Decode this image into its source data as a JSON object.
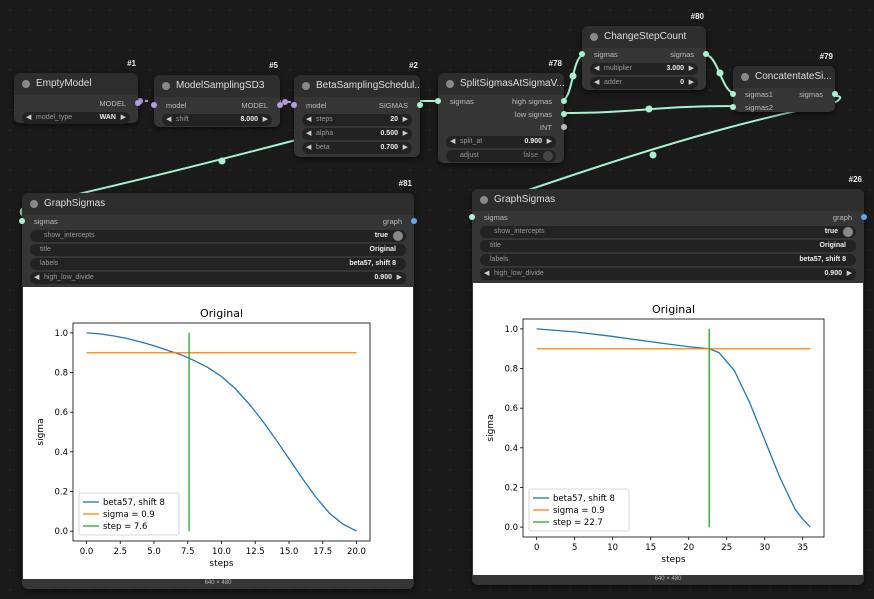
{
  "nodes": {
    "empty_model": {
      "id": "#1",
      "title": "EmptyModel",
      "output": "MODEL",
      "widgets": [
        {
          "key": "model_type",
          "value": "WAN"
        }
      ]
    },
    "model_sampling": {
      "id": "#5",
      "title": "ModelSamplingSD3",
      "input": "model",
      "output": "MODEL",
      "widgets": [
        {
          "key": "shift",
          "value": "8.000"
        }
      ]
    },
    "beta_sched": {
      "id": "#2",
      "title": "BetaSamplingSchedul...",
      "input": "model",
      "output": "SIGMAS",
      "widgets": [
        {
          "key": "steps",
          "value": "20"
        },
        {
          "key": "alpha",
          "value": "0.500"
        },
        {
          "key": "beta",
          "value": "0.700"
        }
      ]
    },
    "split": {
      "id": "#78",
      "title": "SplitSigmasAtSigmaV...",
      "input": "sigmas",
      "outputs": [
        "high sigmas",
        "low sigmas",
        "INT"
      ],
      "widgets": [
        {
          "key": "split_at",
          "value": "0.900"
        },
        {
          "key": "adjust",
          "value": "false"
        }
      ]
    },
    "change_step": {
      "id": "#80",
      "title": "ChangeStepCount",
      "input": "sigmas",
      "output": "sigmas",
      "widgets": [
        {
          "key": "multiplier",
          "value": "3.000"
        },
        {
          "key": "adder",
          "value": "0"
        }
      ]
    },
    "concat": {
      "id": "#79",
      "title": "ConcatentateSi...",
      "inputs": [
        "sigmas1",
        "sigmas2"
      ],
      "output": "sigmas"
    },
    "graph_left": {
      "id": "#81",
      "title": "GraphSigmas",
      "input": "sigmas",
      "output": "graph",
      "widgets": [
        {
          "key": "show_intercepts",
          "value": "true"
        },
        {
          "key": "title",
          "value": "Original"
        },
        {
          "key": "labels",
          "value": "beta57, shift 8"
        },
        {
          "key": "high_low_divide",
          "value": "0.900"
        }
      ],
      "footer": "640 × 480"
    },
    "graph_right": {
      "id": "#26",
      "title": "GraphSigmas",
      "input": "sigmas",
      "output": "graph",
      "widgets": [
        {
          "key": "show_intercepts",
          "value": "true"
        },
        {
          "key": "title",
          "value": "Original"
        },
        {
          "key": "labels",
          "value": "beta57, shift 8"
        },
        {
          "key": "high_low_divide",
          "value": "0.900"
        }
      ],
      "footer": "640 × 480"
    }
  },
  "chart_data": [
    {
      "type": "line",
      "title": "Original",
      "xlabel": "steps",
      "ylabel": "sigma",
      "xlim": [
        -1,
        21
      ],
      "ylim": [
        -0.05,
        1.05
      ],
      "xticks": [
        "0.0",
        "2.5",
        "5.0",
        "7.5",
        "10.0",
        "12.5",
        "15.0",
        "17.5",
        "20.0"
      ],
      "xtick_values": [
        0,
        2.5,
        5,
        7.5,
        10,
        12.5,
        15,
        17.5,
        20
      ],
      "yticks": [
        "0.0",
        "0.2",
        "0.4",
        "0.6",
        "0.8",
        "1.0"
      ],
      "ytick_values": [
        0,
        0.2,
        0.4,
        0.6,
        0.8,
        1.0
      ],
      "legend_position": "lower-left",
      "series": [
        {
          "name": "beta57, shift 8",
          "color": "#1f77b4",
          "x": [
            0,
            1,
            2,
            3,
            4,
            5,
            6,
            7,
            8,
            9,
            10,
            11,
            12,
            13,
            14,
            15,
            16,
            17,
            18,
            19,
            20
          ],
          "y": [
            1.0,
            0.995,
            0.985,
            0.972,
            0.955,
            0.935,
            0.912,
            0.89,
            0.86,
            0.825,
            0.78,
            0.72,
            0.645,
            0.56,
            0.465,
            0.365,
            0.265,
            0.17,
            0.09,
            0.035,
            0.0
          ]
        },
        {
          "name": "sigma = 0.9",
          "color": "#ff7f0e",
          "x": [
            0,
            20
          ],
          "y": [
            0.9,
            0.9
          ]
        },
        {
          "name": "step = 7.6",
          "color": "#2ca02c",
          "x": [
            7.6,
            7.6
          ],
          "y": [
            0.0,
            1.0
          ]
        }
      ]
    },
    {
      "type": "line",
      "title": "Original",
      "xlabel": "steps",
      "ylabel": "sigma",
      "xlim": [
        -1.8,
        37.8
      ],
      "ylim": [
        -0.05,
        1.05
      ],
      "xticks": [
        "0",
        "5",
        "10",
        "15",
        "20",
        "25",
        "30",
        "35"
      ],
      "xtick_values": [
        0,
        5,
        10,
        15,
        20,
        25,
        30,
        35
      ],
      "yticks": [
        "0.0",
        "0.2",
        "0.4",
        "0.6",
        "0.8",
        "1.0"
      ],
      "ytick_values": [
        0,
        0.2,
        0.4,
        0.6,
        0.8,
        1.0
      ],
      "legend_position": "lower-left",
      "series": [
        {
          "name": "beta57, shift 8",
          "color": "#1f77b4",
          "x": [
            0,
            5,
            10,
            15,
            20,
            22.7,
            24,
            26,
            28,
            30,
            32,
            34,
            35,
            36
          ],
          "y": [
            1.0,
            0.985,
            0.962,
            0.935,
            0.91,
            0.9,
            0.88,
            0.79,
            0.63,
            0.44,
            0.25,
            0.09,
            0.04,
            0.0
          ]
        },
        {
          "name": "sigma = 0.9",
          "color": "#ff7f0e",
          "x": [
            0,
            36
          ],
          "y": [
            0.9,
            0.9
          ]
        },
        {
          "name": "step = 22.7",
          "color": "#2ca02c",
          "x": [
            22.7,
            22.7
          ],
          "y": [
            0.0,
            1.0
          ]
        }
      ]
    }
  ]
}
